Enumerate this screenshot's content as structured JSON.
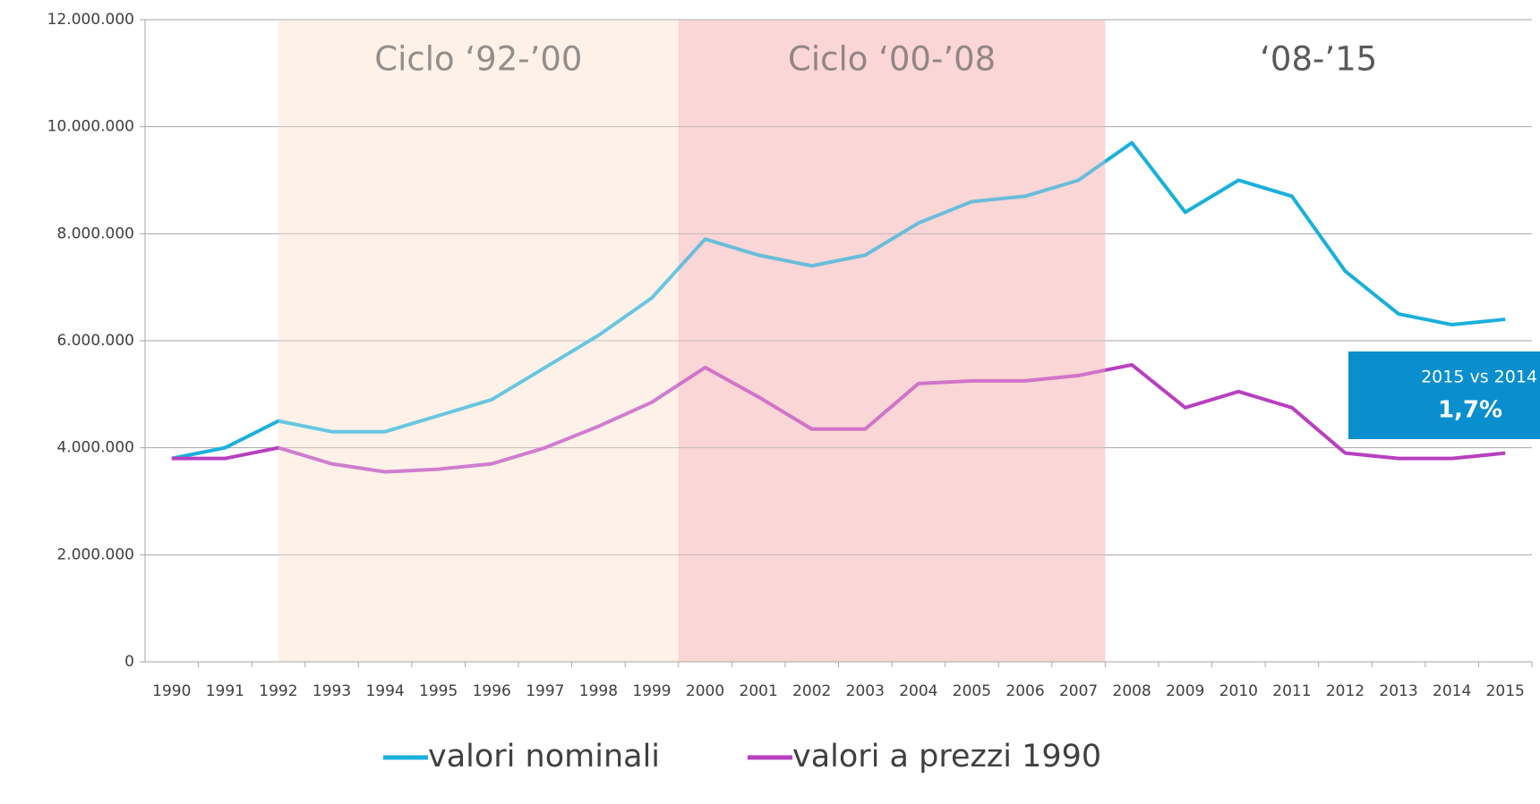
{
  "chart_data": {
    "type": "line",
    "categories": [
      "1990",
      "1991",
      "1992",
      "1993",
      "1994",
      "1995",
      "1996",
      "1997",
      "1998",
      "1999",
      "2000",
      "2001",
      "2002",
      "2003",
      "2004",
      "2005",
      "2006",
      "2007",
      "2008",
      "2009",
      "2010",
      "2011",
      "2012",
      "2013",
      "2014",
      "2015"
    ],
    "series": [
      {
        "name": "valori nominali",
        "color": "#1ab0dc",
        "values": [
          3800000,
          4000000,
          4500000,
          4300000,
          4300000,
          4600000,
          4900000,
          5500000,
          6100000,
          6800000,
          7900000,
          7600000,
          7400000,
          7600000,
          8200000,
          8600000,
          8700000,
          9000000,
          9700000,
          8400000,
          9000000,
          8700000,
          7300000,
          6500000,
          6300000,
          6400000
        ]
      },
      {
        "name": "valori a prezzi 1990",
        "color": "#b840c0",
        "values": [
          3800000,
          3800000,
          4000000,
          3700000,
          3550000,
          3600000,
          3700000,
          4000000,
          4400000,
          4850000,
          5500000,
          4950000,
          4350000,
          4350000,
          5200000,
          5250000,
          5250000,
          5350000,
          5550000,
          4750000,
          5050000,
          4750000,
          3900000,
          3800000,
          3800000,
          3900000
        ]
      }
    ],
    "ylim": [
      0,
      12000000
    ],
    "yticks": [
      {
        "value": 0,
        "label": "0"
      },
      {
        "value": 2000000,
        "label": "2.000.000"
      },
      {
        "value": 4000000,
        "label": "4.000.000"
      },
      {
        "value": 6000000,
        "label": "6.000.000"
      },
      {
        "value": 8000000,
        "label": "8.000.000"
      },
      {
        "value": 10000000,
        "label": "10.000.000"
      },
      {
        "value": 12000000,
        "label": "12.000.000"
      }
    ],
    "grid": true,
    "periods": [
      {
        "label": "Ciclo ‘92-’00",
        "color": "#fdf1e9"
      },
      {
        "label": "Ciclo ‘00-’08",
        "color": "#fbd6d6"
      },
      {
        "label": "‘08-’15",
        "color": "none"
      }
    ],
    "annotation": {
      "title": "2015 vs 2014",
      "value": "1,7%",
      "color": "#0a8fce"
    },
    "legend": "bottom"
  }
}
